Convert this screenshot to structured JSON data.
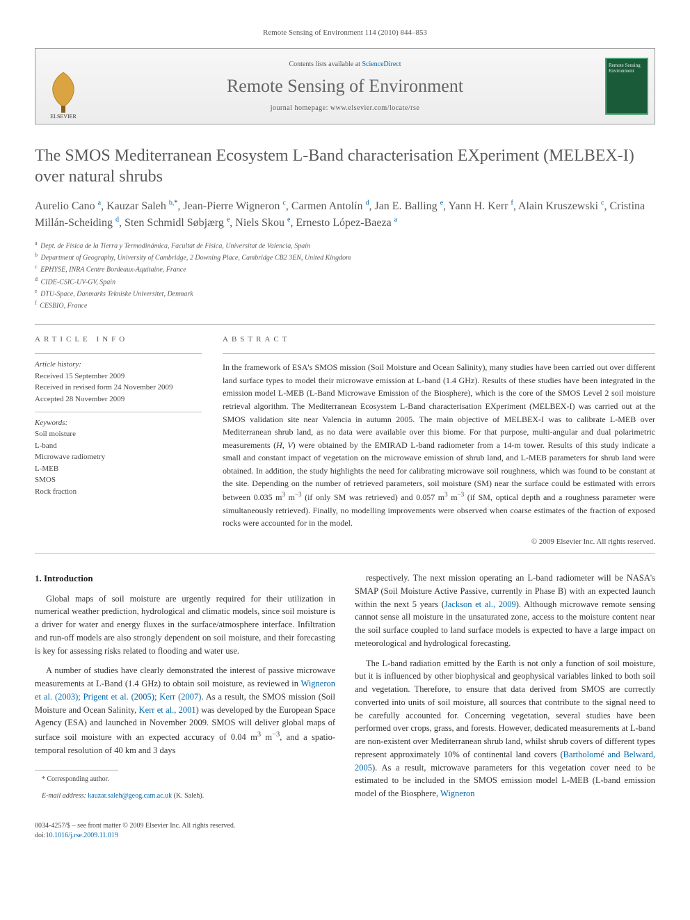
{
  "header": {
    "citation": "Remote Sensing of Environment 114 (2010) 844–853"
  },
  "banner": {
    "contents_line_prefix": "Contents lists available at ",
    "contents_link": "ScienceDirect",
    "journal_name": "Remote Sensing of Environment",
    "homepage_prefix": "journal homepage: ",
    "homepage": "www.elsevier.com/locate/rse",
    "publisher_label": "ELSEVIER",
    "thumb_line1": "Remote Sensing",
    "thumb_line2": "Environment"
  },
  "article": {
    "title": "The SMOS Mediterranean Ecosystem L-Band characterisation EXperiment (MELBEX-I) over natural shrubs",
    "authors_html": "Aurelio Cano <sup>a</sup>, Kauzar Saleh <sup>b,</sup><sup class='star'>*</sup>, Jean-Pierre Wigneron <sup>c</sup>, Carmen Antolín <sup>d</sup>, Jan E. Balling <sup>e</sup>, Yann H. Kerr <sup>f</sup>, Alain Kruszewski <sup>c</sup>, Cristina Millán-Scheiding <sup>d</sup>, Sten Schmidl Søbjærg <sup>e</sup>, Niels Skou <sup>e</sup>, Ernesto López-Baeza <sup>a</sup>",
    "affiliations": [
      {
        "sup": "a",
        "text": "Dept. de Física de la Tierra y Termodinámica, Facultat de Física, Universitat de Valencia, Spain"
      },
      {
        "sup": "b",
        "text": "Department of Geography, University of Cambridge, 2 Downing Place, Cambridge CB2 3EN, United Kingdom"
      },
      {
        "sup": "c",
        "text": "EPHYSE, INRA Centre Bordeaux-Aquitaine, France"
      },
      {
        "sup": "d",
        "text": "CIDE-CSIC-UV-GV, Spain"
      },
      {
        "sup": "e",
        "text": "DTU-Space, Danmarks Tekniske Universitet, Denmark"
      },
      {
        "sup": "f",
        "text": "CESBIO, France"
      }
    ]
  },
  "info": {
    "article_info_label": "ARTICLE INFO",
    "abstract_label": "ABSTRACT",
    "history_label": "Article history:",
    "history": [
      "Received 15 September 2009",
      "Received in revised form 24 November 2009",
      "Accepted 28 November 2009"
    ],
    "keywords_label": "Keywords:",
    "keywords": [
      "Soil moisture",
      "L-band",
      "Microwave radiometry",
      "L-MEB",
      "SMOS",
      "Rock fraction"
    ]
  },
  "abstract": {
    "text_html": "In the framework of ESA's SMOS mission (Soil Moisture and Ocean Salinity), many studies have been carried out over different land surface types to model their microwave emission at L-band (1.4 GHz). Results of these studies have been integrated in the emission model L-MEB (L-Band Microwave Emission of the Biosphere), which is the core of the SMOS Level 2 soil moisture retrieval algorithm. The Mediterranean Ecosystem L-Band characterisation EXperiment (MELBEX-I) was carried out at the SMOS validation site near Valencia in autumn 2005. The main objective of MELBEX-I was to calibrate L-MEB over Mediterranean shrub land, as no data were available over this biome. For that purpose, multi-angular and dual polarimetric measurements (<i>H</i>, <i>V</i>) were obtained by the EMIRAD L-band radiometer from a 14-m tower. Results of this study indicate a small and constant impact of vegetation on the microwave emission of shrub land, and L-MEB parameters for shrub land were obtained. In addition, the study highlights the need for calibrating microwave soil roughness, which was found to be constant at the site. Depending on the number of retrieved parameters, soil moisture (SM) near the surface could be estimated with errors between 0.035 m<sup>3</sup> m<sup>−3</sup> (if only SM was retrieved) and 0.057 m<sup>3</sup> m<sup>−3</sup> (if SM, optical depth and a roughness parameter were simultaneously retrieved). Finally, no modelling improvements were observed when coarse estimates of the fraction of exposed rocks were accounted for in the model.",
    "copyright": "© 2009 Elsevier Inc. All rights reserved."
  },
  "body": {
    "intro_heading": "1. Introduction",
    "p1": "Global maps of soil moisture are urgently required for their utilization in numerical weather prediction, hydrological and climatic models, since soil moisture is a driver for water and energy fluxes in the surface/atmosphere interface. Infiltration and run-off models are also strongly dependent on soil moisture, and their forecasting is key for assessing risks related to flooding and water use.",
    "p2_html": "A number of studies have clearly demonstrated the interest of passive microwave measurements at L-Band (1.4 GHz) to obtain soil moisture, as reviewed in <a href='#'>Wigneron et al. (2003); Prigent et al. (2005); Kerr (2007)</a>. As a result, the SMOS mission (Soil Moisture and Ocean Salinity, <a href='#'>Kerr et al., 2001</a>) was developed by the European Space Agency (ESA) and launched in November 2009. SMOS will deliver global maps of surface soil moisture with an expected accuracy of 0.04 m<sup>3</sup> m<sup>−3</sup>, and a spatio-temporal resolution of 40 km and 3 days",
    "p3_html": "respectively. The next mission operating an L-band radiometer will be NASA's SMAP (Soil Moisture Active Passive, currently in Phase B) with an expected launch within the next 5 years (<a href='#'>Jackson et al., 2009</a>). Although microwave remote sensing cannot sense all moisture in the unsaturated zone, access to the moisture content near the soil surface coupled to land surface models is expected to have a large impact on meteorological and hydrological forecasting.",
    "p4_html": "The L-band radiation emitted by the Earth is not only a function of soil moisture, but it is influenced by other biophysical and geophysical variables linked to both soil and vegetation. Therefore, to ensure that data derived from SMOS are correctly converted into units of soil moisture, all sources that contribute to the signal need to be carefully accounted for. Concerning vegetation, several studies have been performed over crops, grass, and forests. However, dedicated measurements at L-band are non-existent over Mediterranean shrub land, whilst shrub covers of different types represent approximately 10% of continental land covers (<a href='#'>Bartholomé and Belward, 2005</a>). As a result, microwave parameters for this vegetation cover need to be estimated to be included in the SMOS emission model L-MEB (L-band emission model of the Biosphere, <a href='#'>Wigneron</a>"
  },
  "footnote": {
    "corr_label": "* Corresponding author.",
    "email_label": "E-mail address: ",
    "email": "kauzar.saleh@geog.cam.ac.uk",
    "email_suffix": " (K. Saleh)."
  },
  "footer": {
    "line": "0034-4257/$ – see front matter © 2009 Elsevier Inc. All rights reserved.",
    "doi_prefix": "doi:",
    "doi": "10.1016/j.rse.2009.11.019"
  },
  "colors": {
    "link": "#0066aa",
    "text": "#333333",
    "muted": "#555555",
    "rule": "#bbbbbb",
    "journal_thumb_bg": "#1a5c3a",
    "journal_thumb_border": "#4aa070"
  },
  "typography": {
    "title_fontsize": 24,
    "authors_fontsize": 16,
    "abstract_fontsize": 12,
    "body_fontsize": 12.5,
    "affil_fontsize": 10
  }
}
